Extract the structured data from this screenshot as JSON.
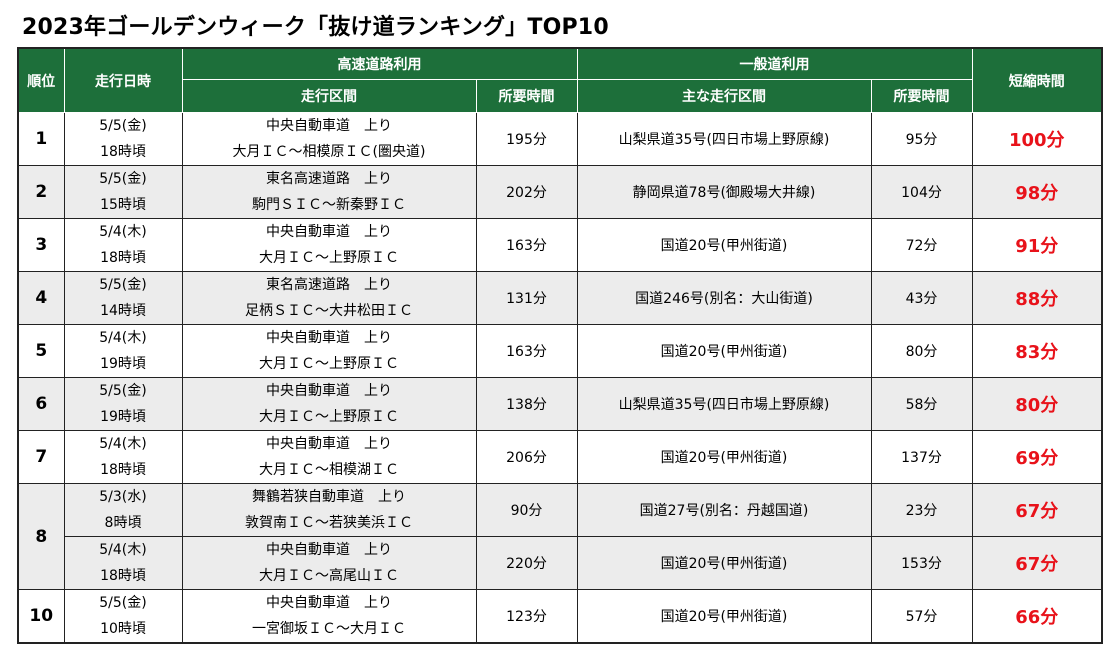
{
  "title": "2023年ゴールデンウィーク「抜け道ランキング」TOP10",
  "headers": {
    "rank": "順位",
    "date": "走行日時",
    "highway_group": "高速道路利用",
    "highway_section": "走行区間",
    "highway_time": "所要時間",
    "general_group": "一般道利用",
    "general_section": "主な走行区間",
    "general_time": "所要時間",
    "saved": "短縮時間"
  },
  "rows": [
    {
      "rank": "1",
      "date": "5/5(金)",
      "time": "18時頃",
      "highway_road": "中央自動車道　上り",
      "highway_section": "大月ＩＣ～相模原ＩＣ(圏央道)",
      "highway_time": "195分",
      "general_route": "山梨県道35号(四日市場上野原線)",
      "general_time": "95分",
      "saved": "100分"
    },
    {
      "rank": "2",
      "date": "5/5(金)",
      "time": "15時頃",
      "highway_road": "東名高速道路　上り",
      "highway_section": "駒門ＳＩＣ～新秦野ＩＣ",
      "highway_time": "202分",
      "general_route": "静岡県道78号(御殿場大井線)",
      "general_time": "104分",
      "saved": "98分"
    },
    {
      "rank": "3",
      "date": "5/4(木)",
      "time": "18時頃",
      "highway_road": "中央自動車道　上り",
      "highway_section": "大月ＩＣ～上野原ＩＣ",
      "highway_time": "163分",
      "general_route": "国道20号(甲州街道)",
      "general_time": "72分",
      "saved": "91分"
    },
    {
      "rank": "4",
      "date": "5/5(金)",
      "time": "14時頃",
      "highway_road": "東名高速道路　上り",
      "highway_section": "足柄ＳＩＣ～大井松田ＩＣ",
      "highway_time": "131分",
      "general_route": "国道246号(別名：大山街道)",
      "general_time": "43分",
      "saved": "88分"
    },
    {
      "rank": "5",
      "date": "5/4(木)",
      "time": "19時頃",
      "highway_road": "中央自動車道　上り",
      "highway_section": "大月ＩＣ～上野原ＩＣ",
      "highway_time": "163分",
      "general_route": "国道20号(甲州街道)",
      "general_time": "80分",
      "saved": "83分"
    },
    {
      "rank": "6",
      "date": "5/5(金)",
      "time": "19時頃",
      "highway_road": "中央自動車道　上り",
      "highway_section": "大月ＩＣ～上野原ＩＣ",
      "highway_time": "138分",
      "general_route": "山梨県道35号(四日市場上野原線)",
      "general_time": "58分",
      "saved": "80分"
    },
    {
      "rank": "7",
      "date": "5/4(木)",
      "time": "18時頃",
      "highway_road": "中央自動車道　上り",
      "highway_section": "大月ＩＣ～相模湖ＩＣ",
      "highway_time": "206分",
      "general_route": "国道20号(甲州街道)",
      "general_time": "137分",
      "saved": "69分"
    },
    {
      "rank": "8",
      "date": "5/3(水)",
      "time": "8時頃",
      "highway_road": "舞鶴若狭自動車道　上り",
      "highway_section": "敦賀南ＩＣ～若狭美浜ＩＣ",
      "highway_time": "90分",
      "general_route": "国道27号(別名：丹越国道)",
      "general_time": "23分",
      "saved": "67分"
    },
    {
      "rank": "",
      "date": "5/4(木)",
      "time": "18時頃",
      "highway_road": "中央自動車道　上り",
      "highway_section": "大月ＩＣ～高尾山ＩＣ",
      "highway_time": "220分",
      "general_route": "国道20号(甲州街道)",
      "general_time": "153分",
      "saved": "67分"
    },
    {
      "rank": "10",
      "date": "5/5(金)",
      "time": "10時頃",
      "highway_road": "中央自動車道　上り",
      "highway_section": "一宮御坂ＩＣ～大月ＩＣ",
      "highway_time": "123分",
      "general_route": "国道20号(甲州街道)",
      "general_time": "57分",
      "saved": "66分"
    }
  ]
}
